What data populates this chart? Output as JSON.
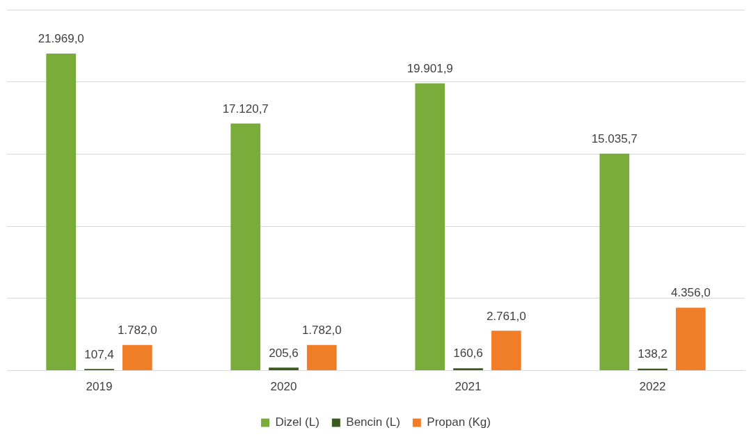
{
  "chart_data": {
    "type": "bar",
    "categories": [
      "2019",
      "2020",
      "2021",
      "2022"
    ],
    "series": [
      {
        "name": "Dizel (L)",
        "color": "#7aac3b",
        "values": [
          21969.0,
          17120.7,
          19901.9,
          15035.7
        ],
        "value_labels": [
          "21.969,0",
          "17.120,7",
          "19.901,9",
          "15.035,7"
        ]
      },
      {
        "name": "Bencin (L)",
        "color": "#3a5a1e",
        "values": [
          107.4,
          205.6,
          160.6,
          138.2
        ],
        "value_labels": [
          "107,4",
          "205,6",
          "160,6",
          "138,2"
        ]
      },
      {
        "name": "Propan (Kg)",
        "color": "#f07e29",
        "values": [
          1782.0,
          1782.0,
          2761.0,
          4356.0
        ],
        "value_labels": [
          "1.782,0",
          "1.782,0",
          "2.761,0",
          "4.356,0"
        ]
      }
    ],
    "ylim": [
      0,
      25000
    ],
    "yticks": [
      {
        "value": 0,
        "label": null
      },
      {
        "value": 5000,
        "label": null
      },
      {
        "value": 10000,
        "label": null
      },
      {
        "value": 15000,
        "label": null
      },
      {
        "value": 20000,
        "label": null
      },
      {
        "value": 25000,
        "label": null
      }
    ],
    "tick_labels": "x",
    "grid": "y",
    "legend": "bottom"
  }
}
